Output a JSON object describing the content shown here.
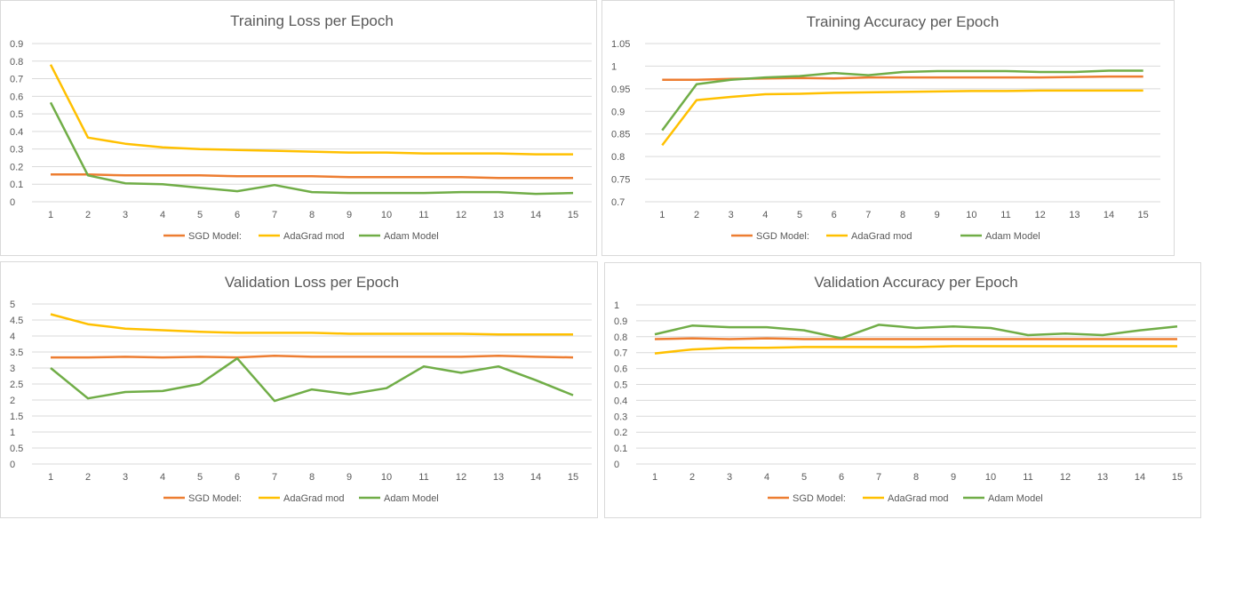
{
  "colors": {
    "sgd": "#ed7d31",
    "adagrad": "#ffc000",
    "adam": "#70ad47",
    "grid": "#d9d9d9",
    "text": "#595959"
  },
  "chart_data": [
    {
      "type": "line",
      "title": "Training Loss per Epoch",
      "x": [
        1,
        2,
        3,
        4,
        5,
        6,
        7,
        8,
        9,
        10,
        11,
        12,
        13,
        14,
        15
      ],
      "ylim": [
        0,
        0.9
      ],
      "yticks": [
        "0",
        "0.1",
        "0.2",
        "0.3",
        "0.4",
        "0.5",
        "0.6",
        "0.7",
        "0.8",
        "0.9"
      ],
      "grid": true,
      "legend": "bottom",
      "series": [
        {
          "name": "SGD Model:",
          "values": [
            0.155,
            0.155,
            0.15,
            0.15,
            0.15,
            0.145,
            0.145,
            0.145,
            0.14,
            0.14,
            0.14,
            0.14,
            0.135,
            0.135,
            0.135
          ]
        },
        {
          "name": "AdaGrad mod",
          "values": [
            0.78,
            0.365,
            0.33,
            0.31,
            0.3,
            0.295,
            0.29,
            0.285,
            0.28,
            0.28,
            0.275,
            0.275,
            0.275,
            0.27,
            0.27
          ]
        },
        {
          "name": "Adam Model",
          "values": [
            0.565,
            0.15,
            0.105,
            0.1,
            0.08,
            0.06,
            0.095,
            0.055,
            0.05,
            0.05,
            0.05,
            0.055,
            0.055,
            0.045,
            0.05
          ]
        }
      ]
    },
    {
      "type": "line",
      "title": "Training Accuracy per Epoch",
      "x": [
        1,
        2,
        3,
        4,
        5,
        6,
        7,
        8,
        9,
        10,
        11,
        12,
        13,
        14,
        15
      ],
      "ylim": [
        0.7,
        1.05
      ],
      "yticks": [
        "0.7",
        "0.75",
        "0.8",
        "0.85",
        "0.9",
        "0.95",
        "1",
        "1.05"
      ],
      "grid": true,
      "legend": "bottom",
      "series": [
        {
          "name": "SGD Model:",
          "values": [
            0.97,
            0.97,
            0.972,
            0.973,
            0.974,
            0.973,
            0.975,
            0.975,
            0.975,
            0.975,
            0.975,
            0.975,
            0.976,
            0.977,
            0.977
          ]
        },
        {
          "name": "AdaGrad mod",
          "values": [
            0.825,
            0.925,
            0.932,
            0.938,
            0.939,
            0.941,
            0.942,
            0.943,
            0.944,
            0.945,
            0.945,
            0.946,
            0.946,
            0.946,
            0.946
          ]
        },
        {
          "name": "Adam Model",
          "values": [
            0.858,
            0.96,
            0.97,
            0.975,
            0.978,
            0.985,
            0.98,
            0.987,
            0.989,
            0.989,
            0.989,
            0.987,
            0.987,
            0.99,
            0.99
          ]
        }
      ]
    },
    {
      "type": "line",
      "title": "Validation Loss per Epoch",
      "x": [
        1,
        2,
        3,
        4,
        5,
        6,
        7,
        8,
        9,
        10,
        11,
        12,
        13,
        14,
        15
      ],
      "ylim": [
        0,
        5
      ],
      "yticks": [
        "0",
        "0.5",
        "1",
        "1.5",
        "2",
        "2.5",
        "3",
        "3.5",
        "4",
        "4.5",
        "5"
      ],
      "grid": true,
      "legend": "bottom",
      "series": [
        {
          "name": "SGD Model:",
          "values": [
            3.33,
            3.33,
            3.35,
            3.33,
            3.35,
            3.33,
            3.38,
            3.35,
            3.35,
            3.35,
            3.35,
            3.35,
            3.38,
            3.35,
            3.33
          ]
        },
        {
          "name": "AdaGrad mod",
          "values": [
            4.68,
            4.37,
            4.23,
            4.18,
            4.13,
            4.1,
            4.1,
            4.1,
            4.07,
            4.07,
            4.07,
            4.07,
            4.05,
            4.05,
            4.05
          ]
        },
        {
          "name": "Adam Model",
          "values": [
            3.0,
            2.05,
            2.25,
            2.28,
            2.5,
            3.3,
            1.97,
            2.33,
            2.18,
            2.37,
            3.05,
            2.85,
            3.05,
            2.62,
            2.15
          ]
        }
      ]
    },
    {
      "type": "line",
      "title": "Validation Accuracy per Epoch",
      "x": [
        1,
        2,
        3,
        4,
        5,
        6,
        7,
        8,
        9,
        10,
        11,
        12,
        13,
        14,
        15
      ],
      "ylim": [
        0,
        1
      ],
      "yticks": [
        "0",
        "0.1",
        "0.2",
        "0.3",
        "0.4",
        "0.5",
        "0.6",
        "0.7",
        "0.8",
        "0.9",
        "1"
      ],
      "grid": true,
      "legend": "bottom",
      "series": [
        {
          "name": "SGD Model:",
          "values": [
            0.785,
            0.79,
            0.785,
            0.79,
            0.785,
            0.785,
            0.785,
            0.785,
            0.785,
            0.785,
            0.785,
            0.785,
            0.785,
            0.785,
            0.785
          ]
        },
        {
          "name": "AdaGrad mod",
          "values": [
            0.695,
            0.72,
            0.73,
            0.73,
            0.735,
            0.735,
            0.735,
            0.735,
            0.74,
            0.74,
            0.74,
            0.74,
            0.74,
            0.74,
            0.74
          ]
        },
        {
          "name": "Adam Model",
          "values": [
            0.815,
            0.87,
            0.86,
            0.86,
            0.84,
            0.79,
            0.875,
            0.855,
            0.865,
            0.855,
            0.81,
            0.82,
            0.81,
            0.84,
            0.865
          ]
        }
      ]
    }
  ]
}
